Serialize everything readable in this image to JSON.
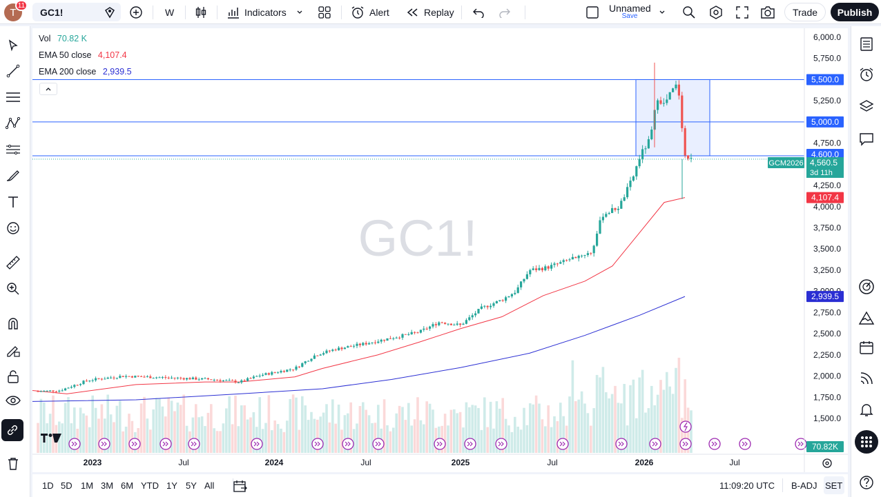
{
  "topbar": {
    "avatar_letter": "T",
    "notification_count": "11",
    "symbol": "GC1!",
    "interval": "W",
    "indicators_label": "Indicators",
    "alert_label": "Alert",
    "replay_label": "Replay",
    "layout_name": "Unnamed",
    "layout_status": "Save",
    "trade_label": "Trade",
    "publish_label": "Publish"
  },
  "legend": {
    "vol_label": "Vol",
    "vol_value": "70.82 K",
    "ema50_label": "EMA 50 close",
    "ema50_value": "4,107.4",
    "ema200_label": "EMA 200 close",
    "ema200_value": "2,939.5"
  },
  "watermark": "GC1!",
  "price_axis": {
    "ticks": [
      "6,000.0",
      "5,750.0",
      "5,250.0",
      "4,750.0",
      "4,250.0",
      "4,000.0",
      "3,750.0",
      "3,500.0",
      "3,250.0",
      "3,000.0",
      "2,750.0",
      "2,500.0",
      "2,250.0",
      "2,000.0",
      "1,750.0",
      "1,500.0"
    ],
    "tags": {
      "line_5500": "5,500.0",
      "line_5000": "5,000.0",
      "box_top": "4,600.0",
      "last_price": "4,560.5",
      "countdown": "3d 11h",
      "contract": "GCM2026",
      "ema50": "4,107.4",
      "ema200": "2,939.5",
      "volume": "70.82K"
    }
  },
  "time_axis": {
    "labels": [
      "2023",
      "Jul",
      "2024",
      "Jul",
      "2025",
      "Jul",
      "2026",
      "Jul"
    ]
  },
  "bottombar": {
    "timeframes": [
      "1D",
      "5D",
      "1M",
      "3M",
      "6M",
      "YTD",
      "1Y",
      "5Y",
      "All"
    ],
    "clock": "11:09:20 UTC",
    "adjust": "B-ADJ",
    "session": "SET"
  },
  "colors": {
    "up": "#26a69a",
    "down": "#ef5350",
    "ema50": "#f23645",
    "ema200": "#2a2ed3",
    "hline": "#2962ff",
    "accent_dark": "#131722"
  },
  "chart_data": {
    "type": "candlestick",
    "title": "GC1!",
    "interval": "W",
    "price_range": [
      1500,
      6000
    ],
    "horizontal_lines": [
      5500,
      5000
    ],
    "range_box": {
      "top": 5500,
      "bottom": 4600
    },
    "last_price": 4560.5,
    "ema50_last": 4107.4,
    "ema200_last": 2939.5,
    "volume_last": "70.82K"
  }
}
